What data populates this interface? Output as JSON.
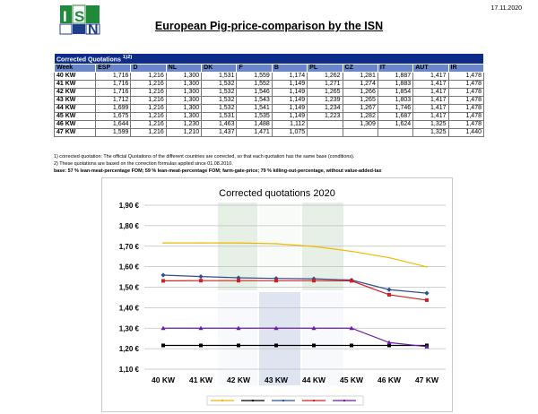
{
  "header": {
    "logo_text": "ISN",
    "date": "17.11.2020",
    "title": "European Pig-price-comparison by the ISN"
  },
  "table": {
    "caption": "Corrected Quotations",
    "caption_sup": "1)2)",
    "columns": [
      "Week",
      "ESP",
      "D",
      "NL",
      "DK",
      "F",
      "B",
      "PL",
      "CZ",
      "IT",
      "AUT",
      "IR"
    ],
    "rows": [
      [
        "40 KW",
        "1,716",
        "1,216",
        "1,300",
        "1,531",
        "1,559",
        "1,174",
        "1,262",
        "1,281",
        "1,887",
        "1,417",
        "1,478"
      ],
      [
        "41 KW",
        "1,716",
        "1,216",
        "1,300",
        "1,532",
        "1,552",
        "1,149",
        "1,271",
        "1,274",
        "1,883",
        "1,417",
        "1,478"
      ],
      [
        "42 KW",
        "1,716",
        "1,216",
        "1,300",
        "1,532",
        "1,546",
        "1,149",
        "1,265",
        "1,266",
        "1,854",
        "1,417",
        "1,478"
      ],
      [
        "43 KW",
        "1,712",
        "1,216",
        "1,300",
        "1,532",
        "1,543",
        "1,149",
        "1,239",
        "1,265",
        "1,803",
        "1,417",
        "1,478"
      ],
      [
        "44 KW",
        "1,699",
        "1,216",
        "1,300",
        "1,532",
        "1,541",
        "1,149",
        "1,234",
        "1,267",
        "1,746",
        "1,417",
        "1,478"
      ],
      [
        "45 KW",
        "1,675",
        "1,216",
        "1,300",
        "1,531",
        "1,535",
        "1,149",
        "1,223",
        "1,282",
        "1,687",
        "1,417",
        "1,478"
      ],
      [
        "46 KW",
        "1,644",
        "1,216",
        "1,230",
        "1,463",
        "1,488",
        "1,112",
        "",
        "1,309",
        "1,624",
        "1,325",
        "1,478"
      ],
      [
        "47 KW",
        "1,599",
        "1,216",
        "1,210",
        "1,437",
        "1,471",
        "1,075",
        "",
        "",
        "",
        "1,325",
        "1,440"
      ]
    ]
  },
  "notes": [
    "1) corrected quotation: The official Quotations of the different countries are corrected, so that each quotation has the same base (conditions).",
    "2) These quotations are based on the correction formulas applied since 01.08.2010.",
    "base: 57 % lean-meat-percentage FOM; 59 % lean-meat-percentage FOM; farm-gate-price; 79 % killing-out-percentage, without value-added-tax"
  ],
  "colors": {
    "table_header": "#0d2c8a",
    "table_columns": "#6a86c8",
    "chart_border": "#c9c9c9"
  },
  "chart_data": {
    "type": "line",
    "title": "Corrected quotations 2020",
    "categories": [
      "40 KW",
      "41 KW",
      "42 KW",
      "43 KW",
      "44 KW",
      "45 KW",
      "46 KW",
      "47 KW"
    ],
    "y_ticks": [
      "1,10 €",
      "1,20 €",
      "1,30 €",
      "1,40 €",
      "1,50 €",
      "1,60 €",
      "1,70 €",
      "1,80 €",
      "1,90 €"
    ],
    "ylim": [
      1.1,
      1.9
    ],
    "grid": true,
    "legend": "bottom",
    "series": [
      {
        "color": "#f2b800",
        "marker": "none",
        "values": [
          1.716,
          1.716,
          1.716,
          1.712,
          1.699,
          1.675,
          1.644,
          1.599
        ]
      },
      {
        "color": "#000000",
        "marker": "square",
        "values": [
          1.216,
          1.216,
          1.216,
          1.216,
          1.216,
          1.216,
          1.216,
          1.216
        ]
      },
      {
        "color": "#2f4f8f",
        "marker": "diamond",
        "values": [
          1.559,
          1.552,
          1.546,
          1.543,
          1.541,
          1.535,
          1.488,
          1.471
        ]
      },
      {
        "color": "#d21f1f",
        "marker": "square",
        "values": [
          1.531,
          1.532,
          1.532,
          1.532,
          1.532,
          1.531,
          1.463,
          1.437
        ]
      },
      {
        "color": "#6a1fa6",
        "marker": "triangle",
        "values": [
          1.3,
          1.3,
          1.3,
          1.3,
          1.3,
          1.3,
          1.23,
          1.21
        ]
      }
    ]
  }
}
